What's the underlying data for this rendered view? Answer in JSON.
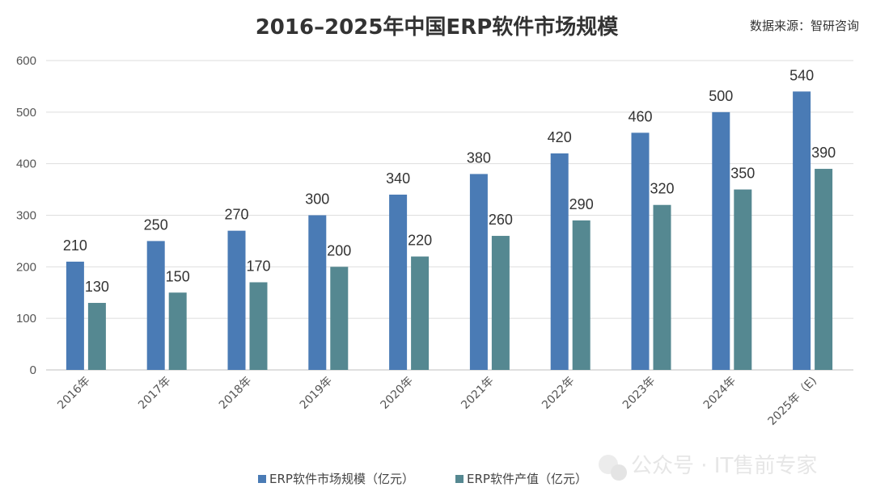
{
  "chart_data": {
    "type": "bar",
    "title": "2016–2025年中国ERP软件市场规模",
    "source": "数据来源：智研咨询",
    "categories": [
      "2016年",
      "2017年",
      "2018年",
      "2019年",
      "2020年",
      "2021年",
      "2022年",
      "2023年",
      "2024年",
      "2025年（E)"
    ],
    "series": [
      {
        "name": "ERP软件市场规模（亿元）",
        "color": "#4a7bb5",
        "values": [
          210,
          250,
          270,
          300,
          340,
          380,
          420,
          460,
          500,
          540
        ]
      },
      {
        "name": "ERP软件产值（亿元）",
        "color": "#558891",
        "values": [
          130,
          150,
          170,
          200,
          220,
          260,
          290,
          320,
          350,
          390
        ]
      }
    ],
    "yticks": [
      0,
      100,
      200,
      300,
      400,
      500,
      600
    ],
    "ylim": [
      0,
      600
    ],
    "xlabel": "",
    "ylabel": "",
    "grid": true,
    "legend": "bottom",
    "watermark": "公众号 · IT售前专家"
  }
}
